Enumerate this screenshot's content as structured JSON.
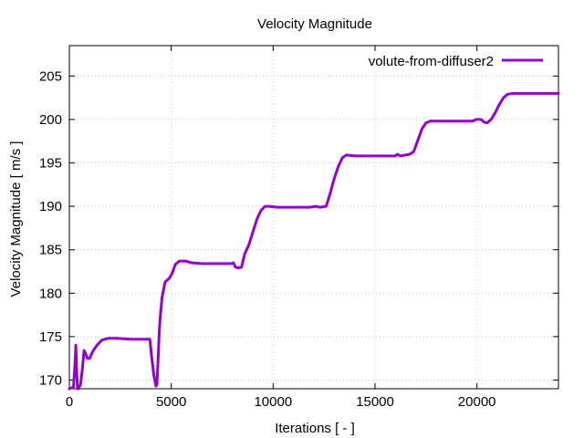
{
  "chart_data": {
    "type": "line",
    "title": "Velocity Magnitude",
    "xlabel": "Iterations [ - ]",
    "ylabel": "Velocity Magnitude [ m/s ]",
    "xlim": [
      0,
      24000
    ],
    "ylim": [
      169,
      208.5
    ],
    "xticks": [
      0,
      5000,
      10000,
      15000,
      20000
    ],
    "yticks": [
      170,
      175,
      180,
      185,
      190,
      195,
      200,
      205
    ],
    "grid": true,
    "legend_position": "top-right",
    "series": [
      {
        "name": "volute-from-diffuser2",
        "color": "#9400d3",
        "points": [
          [
            0,
            169
          ],
          [
            200,
            169.2
          ],
          [
            280,
            172
          ],
          [
            320,
            174
          ],
          [
            360,
            171
          ],
          [
            400,
            169
          ],
          [
            450,
            169
          ],
          [
            550,
            169.5
          ],
          [
            650,
            171.5
          ],
          [
            720,
            173.4
          ],
          [
            800,
            173
          ],
          [
            880,
            172.5
          ],
          [
            1000,
            172.5
          ],
          [
            1150,
            173.3
          ],
          [
            1350,
            174.0
          ],
          [
            1600,
            174.6
          ],
          [
            1900,
            174.8
          ],
          [
            2300,
            174.8
          ],
          [
            3000,
            174.7
          ],
          [
            3950,
            174.7
          ],
          [
            4050,
            172.5
          ],
          [
            4150,
            170.5
          ],
          [
            4250,
            169.3
          ],
          [
            4300,
            169.5
          ],
          [
            4350,
            172
          ],
          [
            4400,
            175
          ],
          [
            4450,
            177
          ],
          [
            4550,
            179.5
          ],
          [
            4700,
            181.3
          ],
          [
            4900,
            181.7
          ],
          [
            5050,
            182.3
          ],
          [
            5200,
            183.3
          ],
          [
            5400,
            183.7
          ],
          [
            5700,
            183.7
          ],
          [
            6000,
            183.5
          ],
          [
            6500,
            183.4
          ],
          [
            7000,
            183.4
          ],
          [
            7500,
            183.4
          ],
          [
            7950,
            183.4
          ],
          [
            8050,
            183.5
          ],
          [
            8150,
            183
          ],
          [
            8300,
            182.9
          ],
          [
            8450,
            183.0
          ],
          [
            8600,
            184.5
          ],
          [
            8800,
            185.5
          ],
          [
            9000,
            187
          ],
          [
            9200,
            188.5
          ],
          [
            9400,
            189.5
          ],
          [
            9600,
            190.0
          ],
          [
            9800,
            190.0
          ],
          [
            10200,
            189.9
          ],
          [
            11000,
            189.9
          ],
          [
            11800,
            189.9
          ],
          [
            12100,
            190.0
          ],
          [
            12300,
            189.9
          ],
          [
            12600,
            190.0
          ],
          [
            12800,
            191.5
          ],
          [
            13000,
            193.2
          ],
          [
            13200,
            194.6
          ],
          [
            13400,
            195.6
          ],
          [
            13600,
            195.9
          ],
          [
            14000,
            195.8
          ],
          [
            15000,
            195.8
          ],
          [
            16000,
            195.8
          ],
          [
            16100,
            196.0
          ],
          [
            16250,
            195.8
          ],
          [
            16500,
            195.9
          ],
          [
            16700,
            196.0
          ],
          [
            16900,
            196.3
          ],
          [
            17100,
            197.6
          ],
          [
            17300,
            198.9
          ],
          [
            17500,
            199.6
          ],
          [
            17700,
            199.8
          ],
          [
            18500,
            199.8
          ],
          [
            19500,
            199.8
          ],
          [
            19800,
            199.8
          ],
          [
            19950,
            200.0
          ],
          [
            20200,
            200.0
          ],
          [
            20350,
            199.7
          ],
          [
            20500,
            199.6
          ],
          [
            20700,
            200.0
          ],
          [
            20900,
            200.8
          ],
          [
            21100,
            201.7
          ],
          [
            21300,
            202.5
          ],
          [
            21500,
            202.9
          ],
          [
            21800,
            203.0
          ],
          [
            22500,
            203.0
          ],
          [
            23200,
            203.0
          ],
          [
            24000,
            203.0
          ]
        ]
      }
    ]
  }
}
